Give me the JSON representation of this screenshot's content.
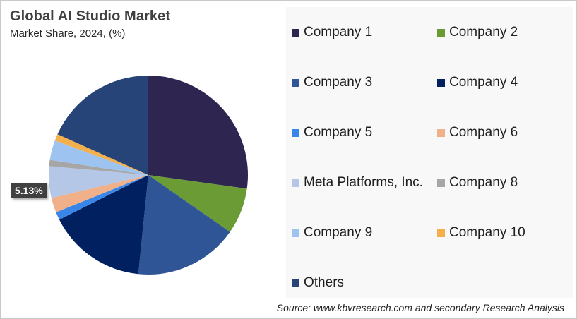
{
  "chart_data": {
    "type": "pie",
    "title": "Global AI Studio Market",
    "subtitle": "Market Share, 2024, (%)",
    "categories": [
      "Company 1",
      "Company 2",
      "Company 3",
      "Company 4",
      "Company 5",
      "Company 6",
      "Meta Platforms, Inc.",
      "Company 8",
      "Company 9",
      "Company 10",
      "Others"
    ],
    "values": [
      27.2,
      7.5,
      16.9,
      16.0,
      1.3,
      2.4,
      5.13,
      1.0,
      3.2,
      1.1,
      18.27
    ],
    "colors": [
      "#2e2650",
      "#6a9b35",
      "#2f5597",
      "#002060",
      "#3a86e8",
      "#f0b08a",
      "#b4c7e7",
      "#a6a6a6",
      "#9dc3f0",
      "#f4b04c",
      "#264478"
    ],
    "annotations": [
      {
        "category": "Meta Platforms, Inc.",
        "label": "5.13%"
      }
    ],
    "start_angle_deg": 0,
    "direction": "clockwise",
    "legend_position": "right"
  },
  "header": {
    "title": "Global AI Studio Market",
    "subtitle": "Market Share, 2024, (%)"
  },
  "data_label": "5.13%",
  "legend": {
    "items": [
      {
        "label": "Company 1",
        "color": "#2e2650"
      },
      {
        "label": "Company 2",
        "color": "#6a9b35"
      },
      {
        "label": "Company 3",
        "color": "#2f5597"
      },
      {
        "label": "Company 4",
        "color": "#002060"
      },
      {
        "label": "Company 5",
        "color": "#3a86e8"
      },
      {
        "label": "Company 6",
        "color": "#f0b08a"
      },
      {
        "label": "Meta Platforms, Inc.",
        "color": "#b4c7e7"
      },
      {
        "label": "Company 8",
        "color": "#a6a6a6"
      },
      {
        "label": "Company 9",
        "color": "#9dc3f0"
      },
      {
        "label": "Company 10",
        "color": "#f4b04c"
      },
      {
        "label": "Others",
        "color": "#264478"
      }
    ]
  },
  "footer": {
    "source": "Source: www.kbvresearch.com and secondary Research Analysis"
  }
}
